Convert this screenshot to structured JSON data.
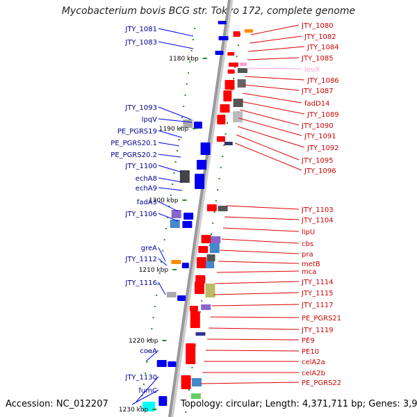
{
  "title": "Mycobacterium bovis BCG str. Tokyo 172, complete genome",
  "footer": {
    "accession": "Accession: NC_012207",
    "topology": "Topology: circular; Length: 4,371,711 bp; Genes: 3,993"
  },
  "colors": {
    "forward_gene": "#ff0000",
    "reverse_gene": "#0000ee",
    "rna_gene": "#ff9ed6",
    "tick": "#228b22",
    "backbone": "#999999"
  },
  "kbp_ticks": [
    "1180 kbp",
    "1190 kbp",
    "1200 kbp",
    "1210 kbp",
    "1220 kbp",
    "1230 kbp"
  ],
  "left_labels": [
    "JTY_1081",
    "JTY_1083",
    "JTY_1093",
    "lpqV",
    "PE_PGRS19",
    "PE_PGRS20.1",
    "PE_PGRS20.2",
    "JTY_1100",
    "echA8",
    "echA9",
    "fadA3",
    "JTY_1106",
    "greA",
    "JTY_1112",
    "JTY_1116",
    "coaA",
    "JTY_1130",
    "fumC"
  ],
  "right_labels": [
    "JTY_1080",
    "JTY_1082",
    "JTY_1084",
    "JTY_1085",
    "leuX",
    "JTY_1086",
    "JTY_1087",
    "fadD14",
    "JTY_1089",
    "JTY_1090",
    "JTY_1091",
    "JTY_1092",
    "JTY_1095",
    "JTY_1096",
    "JTY_1103",
    "JTY_1104",
    "lipU",
    "cbs",
    "pra",
    "metB",
    "mca",
    "JTY_1114",
    "JTY_1115",
    "JTY_1117",
    "PE_PGRS21",
    "JTY_1119",
    "PE9",
    "PE10",
    "celA2a",
    "celA2b",
    "PE_PGRS22"
  ]
}
